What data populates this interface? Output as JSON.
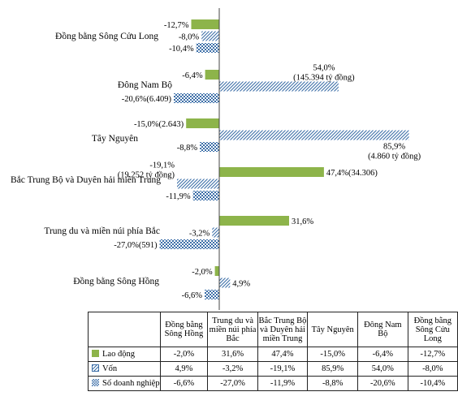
{
  "chart_data": {
    "type": "bar",
    "orientation": "horizontal",
    "categories": [
      "Đồng bằng Sông Cửu Long",
      "Đông Nam Bộ",
      "Tây Nguyên",
      "Bắc Trung Bộ và Duyên hải miền Trung",
      "Trung du và miền núi phía Bắc",
      "Đồng bằng Sông Hồng"
    ],
    "series": [
      {
        "name": "Lao động",
        "color": "#8db44a",
        "pattern": "solid",
        "values": [
          -12.7,
          -6.4,
          -15.0,
          47.4,
          31.6,
          -2.0
        ],
        "labels": [
          "-12,7%",
          "-6,4%",
          "-15,0%(2.643)",
          "47,4%(34.306)",
          "31,6%",
          "-2,0%"
        ]
      },
      {
        "name": "Vốn",
        "color": "#3d6fa8",
        "pattern": "diagonal",
        "values": [
          -8.0,
          54.0,
          85.9,
          -19.1,
          -3.2,
          4.9
        ],
        "labels": [
          "-8,0%",
          "54,0%|(145.394 tỷ đồng)",
          "85,9%|(4.860 tỷ đồng)",
          "-19,1%|(19.252 tỷ đồng)",
          "-3,2%",
          "4,9%"
        ]
      },
      {
        "name": "Số doanh nghiệp",
        "color": "#3d6fa8",
        "pattern": "check",
        "values": [
          -10.4,
          -20.6,
          -8.8,
          -11.9,
          -27.0,
          -6.6
        ],
        "labels": [
          "-10,4%",
          "-20,6%(6.409)",
          "-8,8%",
          "-11,9%",
          "-27,0%(591)",
          "-6,6%"
        ]
      }
    ],
    "xlim": [
      -30,
      100
    ],
    "grid": false,
    "legend": "data-table",
    "data_table": {
      "headers": [
        "Đồng bằng|Sông Hồng",
        "Trung du và|miền núi phía|Bắc",
        "Bắc Trung Bộ|và Duyên hải|miền Trung",
        "Tây Nguyên",
        "Đông Nam|Bộ",
        "Đồng bằng|Sông Cửu|Long"
      ],
      "rows": [
        {
          "label": "Lao động",
          "key": "green",
          "cells": [
            "-2,0%",
            "31,6%",
            "47,4%",
            "-15,0%",
            "-6,4%",
            "-12,7%"
          ]
        },
        {
          "label": "Vốn",
          "key": "blue",
          "cells": [
            "4,9%",
            "-3,2%",
            "-19,1%",
            "85,9%",
            "54,0%",
            "-8,0%"
          ]
        },
        {
          "label": "Số doanh nghiệp",
          "key": "check",
          "cells": [
            "-6,6%",
            "-27,0%",
            "-11,9%",
            "-8,8%",
            "-20,6%",
            "-10,4%"
          ]
        }
      ]
    }
  }
}
